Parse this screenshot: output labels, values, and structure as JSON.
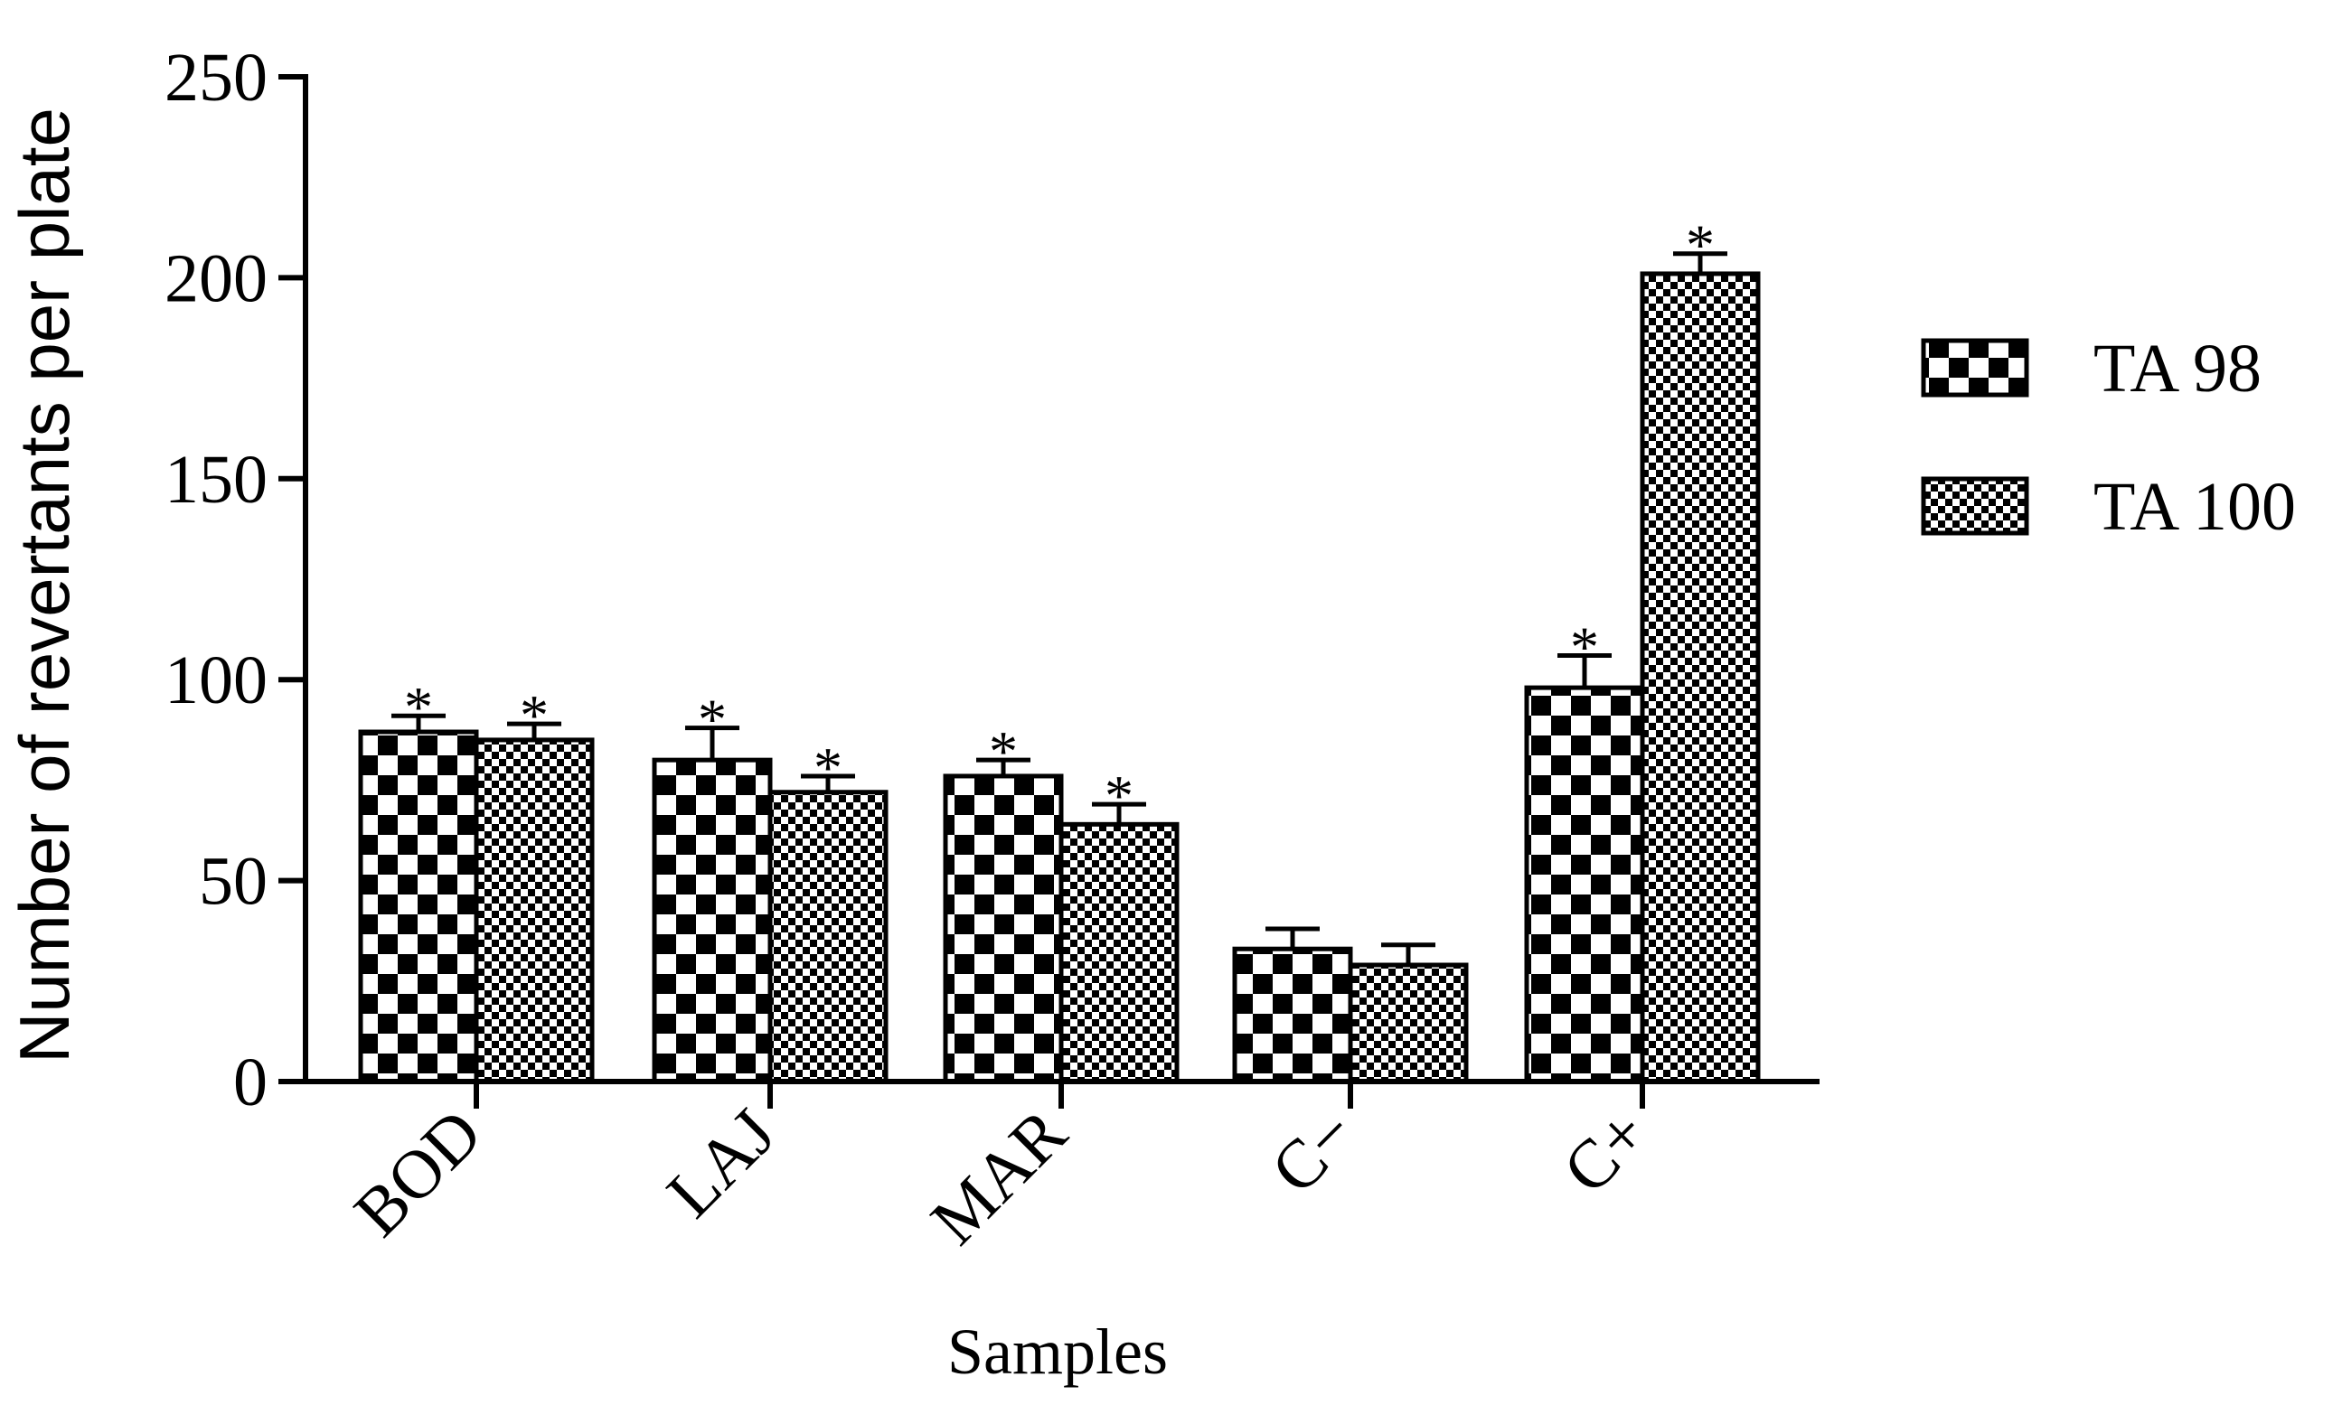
{
  "chart_data": {
    "type": "bar",
    "title": "",
    "xlabel": "Samples",
    "ylabel": "Number of revertants per plate",
    "categories": [
      "BOD",
      "LAJ",
      "MAR",
      "C−",
      "C+"
    ],
    "ylim": [
      0,
      250
    ],
    "yticks": [
      0,
      50,
      100,
      150,
      200,
      250
    ],
    "ytick_labels": [
      "0",
      "50",
      "100",
      "150",
      "200",
      "250"
    ],
    "grid": false,
    "legend_position": "right",
    "series": [
      {
        "name": "TA 98",
        "pattern": "large-checker",
        "values": [
          87,
          80,
          76,
          33,
          98
        ],
        "errors": [
          4,
          8,
          4,
          5,
          8
        ],
        "significance": [
          "*",
          "*",
          "*",
          "",
          "*"
        ]
      },
      {
        "name": "TA 100",
        "pattern": "small-checker",
        "values": [
          85,
          72,
          64,
          29,
          201
        ],
        "errors": [
          4,
          4,
          5,
          5,
          5
        ],
        "significance": [
          "*",
          "*",
          "*",
          "",
          "*"
        ]
      }
    ],
    "colors": {
      "ink": "#000000",
      "fill_light": "#ffffff"
    }
  }
}
